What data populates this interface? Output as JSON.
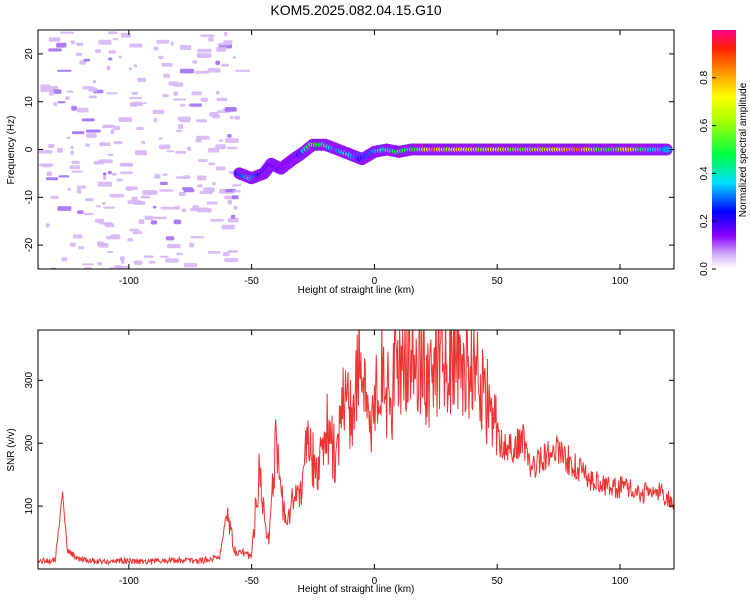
{
  "title": "KOM5.2025.082.04.15.G10",
  "chart_data": [
    {
      "type": "heatmap",
      "xlabel": "Height of straight line (km)",
      "ylabel": "Frequency (Hz)",
      "xlim": [
        -137,
        122
      ],
      "ylim": [
        -25,
        25
      ],
      "xticks": [
        -100,
        -50,
        0,
        50,
        100
      ],
      "yticks": [
        -20,
        -10,
        0,
        10,
        20
      ],
      "colorbar": {
        "label": "Normalized spectral amplitude",
        "range": [
          0,
          1
        ],
        "ticks": [
          0.0,
          0.2,
          0.4,
          0.6,
          0.8
        ],
        "tick_labels": [
          "0.0",
          "0.2",
          "0.4",
          "0.6",
          "0.8"
        ]
      },
      "trace": [
        {
          "x": -55,
          "y": -5,
          "v": 0.25
        },
        {
          "x": -50,
          "y": -6,
          "v": 0.35
        },
        {
          "x": -45,
          "y": -5,
          "v": 0.22
        },
        {
          "x": -42,
          "y": -3,
          "v": 0.18
        },
        {
          "x": -38,
          "y": -4,
          "v": 0.15
        },
        {
          "x": -33,
          "y": -2,
          "v": 0.14
        },
        {
          "x": -30,
          "y": -1,
          "v": 0.2
        },
        {
          "x": -25,
          "y": 1,
          "v": 0.55
        },
        {
          "x": -20,
          "y": 1,
          "v": 0.45
        },
        {
          "x": -15,
          "y": 0,
          "v": 0.3
        },
        {
          "x": -10,
          "y": -1,
          "v": 0.4
        },
        {
          "x": -5,
          "y": -2,
          "v": 0.25
        },
        {
          "x": 0,
          "y": -0.5,
          "v": 0.3
        },
        {
          "x": 5,
          "y": 0,
          "v": 0.4
        },
        {
          "x": 10,
          "y": -0.5,
          "v": 0.5
        },
        {
          "x": 15,
          "y": 0,
          "v": 0.45
        },
        {
          "x": 20,
          "y": 0,
          "v": 0.55
        },
        {
          "x": 25,
          "y": 0,
          "v": 0.85
        },
        {
          "x": 30,
          "y": 0,
          "v": 0.6
        },
        {
          "x": 35,
          "y": 0,
          "v": 0.75
        },
        {
          "x": 40,
          "y": 0,
          "v": 0.65
        },
        {
          "x": 45,
          "y": 0,
          "v": 0.6
        },
        {
          "x": 50,
          "y": 0,
          "v": 0.7
        },
        {
          "x": 55,
          "y": 0,
          "v": 0.6
        },
        {
          "x": 60,
          "y": 0,
          "v": 0.55
        },
        {
          "x": 65,
          "y": 0,
          "v": 0.6
        },
        {
          "x": 70,
          "y": 0,
          "v": 0.65
        },
        {
          "x": 75,
          "y": 0,
          "v": 0.7
        },
        {
          "x": 80,
          "y": 0,
          "v": 0.8
        },
        {
          "x": 85,
          "y": 0,
          "v": 0.85
        },
        {
          "x": 90,
          "y": 0,
          "v": 0.6
        },
        {
          "x": 95,
          "y": 0,
          "v": 0.5
        },
        {
          "x": 100,
          "y": 0,
          "v": 0.55
        },
        {
          "x": 105,
          "y": 0,
          "v": 0.75
        },
        {
          "x": 110,
          "y": 0,
          "v": 0.45
        },
        {
          "x": 115,
          "y": 0,
          "v": 0.4
        },
        {
          "x": 120,
          "y": 0,
          "v": 0.3
        }
      ],
      "noise_region": {
        "x_range": [
          -137,
          -56
        ],
        "y_range": [
          -25,
          25
        ],
        "level": 0.05
      }
    },
    {
      "type": "line",
      "xlabel": "Height of straight line (km)",
      "ylabel": "SNR (v/v)",
      "xlim": [
        -137,
        122
      ],
      "ylim": [
        0,
        380
      ],
      "xticks": [
        -100,
        -50,
        0,
        50,
        100
      ],
      "yticks": [
        100,
        200,
        300
      ],
      "series": [
        {
          "color": "#ee3333",
          "x": [
            -137,
            -130,
            -127,
            -125,
            -120,
            -110,
            -100,
            -90,
            -80,
            -70,
            -63,
            -60,
            -57,
            -53,
            -50,
            -47,
            -43,
            -40,
            -36,
            -33,
            -30,
            -27,
            -24,
            -20,
            -16,
            -12,
            -8,
            -6,
            -3,
            0,
            3,
            6,
            10,
            15,
            18,
            22,
            26,
            30,
            34,
            38,
            42,
            45,
            48,
            52,
            56,
            60,
            64,
            68,
            72,
            76,
            80,
            85,
            90,
            95,
            100,
            105,
            110,
            115,
            118,
            122
          ],
          "y": [
            12,
            15,
            120,
            30,
            14,
            12,
            13,
            12,
            14,
            13,
            20,
            95,
            30,
            25,
            20,
            160,
            40,
            200,
            60,
            110,
            130,
            210,
            150,
            230,
            180,
            270,
            250,
            375,
            220,
            270,
            320,
            260,
            340,
            320,
            345,
            300,
            335,
            340,
            330,
            320,
            310,
            280,
            230,
            200,
            190,
            210,
            160,
            175,
            190,
            185,
            170,
            150,
            140,
            130,
            130,
            125,
            120,
            125,
            115,
            105
          ]
        }
      ]
    }
  ]
}
